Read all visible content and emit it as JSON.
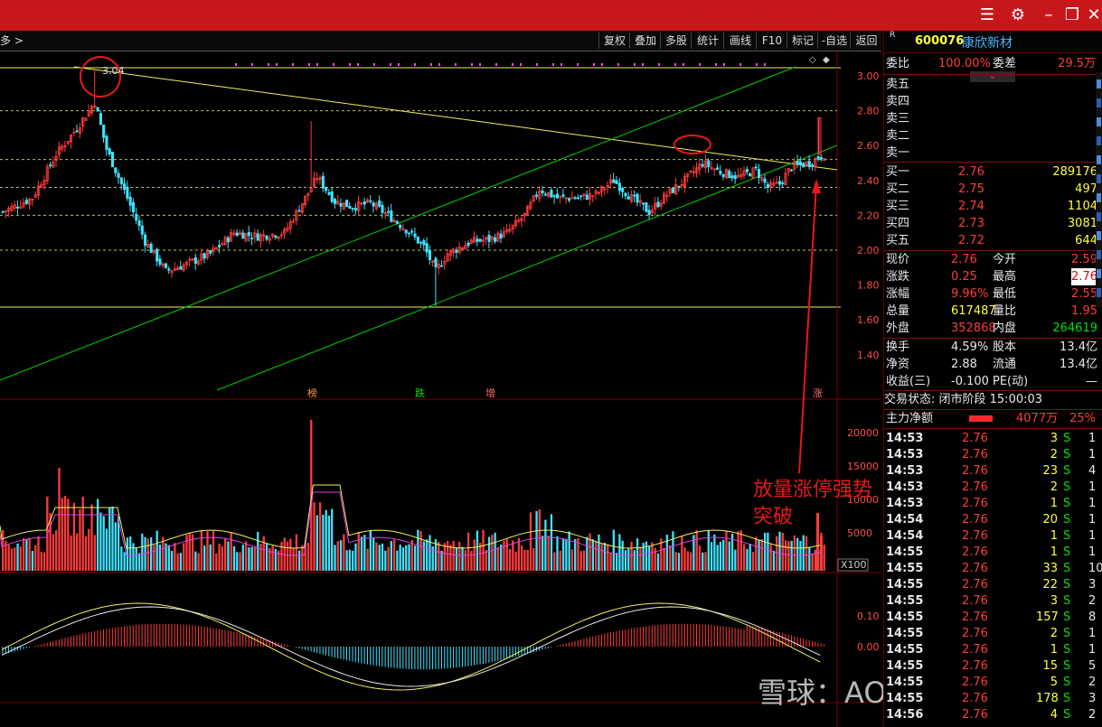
{
  "toolbar": {
    "left_label": "多 >",
    "buttons": [
      "复权",
      "叠加",
      "多股",
      "统计",
      "画线",
      "F10",
      "标记",
      "-自选",
      "返回"
    ]
  },
  "stock": {
    "flag": "R",
    "code": "600076",
    "name": "康欣新材"
  },
  "quote": {
    "weibi_label": "委比",
    "weibi": "100.00%",
    "weicha_label": "委差",
    "weicha": "29.5万",
    "sells": [
      {
        "label": "卖五"
      },
      {
        "label": "卖四"
      },
      {
        "label": "卖三"
      },
      {
        "label": "卖二"
      },
      {
        "label": "卖一"
      }
    ],
    "buys": [
      {
        "label": "买一",
        "price": "2.76",
        "vol": "289176"
      },
      {
        "label": "买二",
        "price": "2.75",
        "vol": "497"
      },
      {
        "label": "买三",
        "price": "2.74",
        "vol": "1104"
      },
      {
        "label": "买四",
        "price": "2.73",
        "vol": "3081"
      },
      {
        "label": "买五",
        "price": "2.72",
        "vol": "644"
      }
    ],
    "stats": [
      {
        "l1": "现价",
        "v1": "2.76",
        "l2": "今开",
        "v2": "2.59"
      },
      {
        "l1": "涨跌",
        "v1": "0.25",
        "l2": "最高",
        "v2": "2.76"
      },
      {
        "l1": "涨幅",
        "v1": "9.96%",
        "l2": "最低",
        "v2": "2.55"
      },
      {
        "l1": "总量",
        "v1": "617487",
        "l2": "量比",
        "v2": "1.95"
      },
      {
        "l1": "外盘",
        "v1": "352868",
        "l2": "内盘",
        "v2": "264619"
      }
    ],
    "stats2": [
      {
        "l1": "换手",
        "v1": "4.59%",
        "l2": "股本",
        "v2": "13.4亿"
      },
      {
        "l1": "净资",
        "v1": "2.88",
        "l2": "流通",
        "v2": "13.4亿"
      },
      {
        "l1": "收益(三)",
        "v1": "-0.100",
        "l2": "PE(动)",
        "v2": "—"
      }
    ],
    "status": "交易状态: 闭市阶段 15:00:03",
    "main_label": "主力净额",
    "main_value": "4077万",
    "main_pct": "25%"
  },
  "ticks": [
    {
      "t": "14:53",
      "p": "2.76",
      "v": "3",
      "s": "S",
      "n": "1"
    },
    {
      "t": "14:53",
      "p": "2.76",
      "v": "2",
      "s": "S",
      "n": "1"
    },
    {
      "t": "14:53",
      "p": "2.76",
      "v": "23",
      "s": "S",
      "n": "4"
    },
    {
      "t": "14:53",
      "p": "2.76",
      "v": "2",
      "s": "S",
      "n": "1"
    },
    {
      "t": "14:53",
      "p": "2.76",
      "v": "1",
      "s": "S",
      "n": "1"
    },
    {
      "t": "14:54",
      "p": "2.76",
      "v": "20",
      "s": "S",
      "n": "1"
    },
    {
      "t": "14:54",
      "p": "2.76",
      "v": "1",
      "s": "S",
      "n": "1"
    },
    {
      "t": "14:55",
      "p": "2.76",
      "v": "1",
      "s": "S",
      "n": "1"
    },
    {
      "t": "14:55",
      "p": "2.76",
      "v": "33",
      "s": "S",
      "n": "10"
    },
    {
      "t": "14:55",
      "p": "2.76",
      "v": "22",
      "s": "S",
      "n": "3"
    },
    {
      "t": "14:55",
      "p": "2.76",
      "v": "3",
      "s": "S",
      "n": "2"
    },
    {
      "t": "14:55",
      "p": "2.76",
      "v": "157",
      "s": "S",
      "n": "8"
    },
    {
      "t": "14:55",
      "p": "2.76",
      "v": "2",
      "s": "S",
      "n": "1"
    },
    {
      "t": "14:55",
      "p": "2.76",
      "v": "1",
      "s": "S",
      "n": "1"
    },
    {
      "t": "14:55",
      "p": "2.76",
      "v": "15",
      "s": "S",
      "n": "5"
    },
    {
      "t": "14:55",
      "p": "2.76",
      "v": "5",
      "s": "S",
      "n": "2"
    },
    {
      "t": "14:55",
      "p": "2.76",
      "v": "178",
      "s": "S",
      "n": "3"
    },
    {
      "t": "14:56",
      "p": "2.76",
      "v": "4",
      "s": "S",
      "n": "2"
    }
  ],
  "chart": {
    "price_axis": [
      "3.00",
      "2.80",
      "2.60",
      "2.40",
      "2.20",
      "2.00",
      "1.80",
      "1.60",
      "1.40"
    ],
    "vol_axis": [
      "20000",
      "15000",
      "10000",
      "5000"
    ],
    "vol_unit": "X100",
    "macd_axis": [
      "0.10",
      "0.00"
    ],
    "high_label": "3.04",
    "markers": [
      "榜",
      "跌",
      "增",
      "涨"
    ]
  },
  "annotation": "放量涨停强势突破",
  "watermark": "雪球：AO舌尖寻味",
  "colors": {
    "titlebar": "#c8171b",
    "up": "#ff3b3b",
    "down": "#3fe3ff",
    "trend": "#00d000",
    "resistance": "#f0f060"
  }
}
